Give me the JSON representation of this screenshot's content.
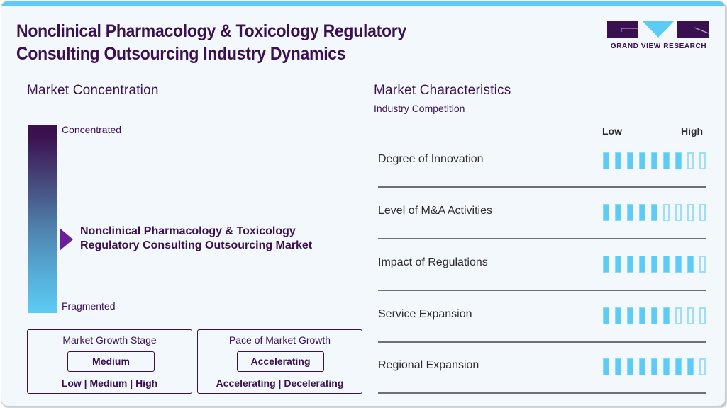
{
  "header": {
    "title_lines": [
      "Nonclinical Pharmacology & Toxicology Regulatory",
      "Consulting Outsourcing Industry Dynamics"
    ],
    "logo_text": "GRAND VIEW RESEARCH"
  },
  "colors": {
    "top_stripe": "#5ccbf5",
    "title_text": "#3b1050",
    "bar_filled": "#5ccbf5",
    "bar_empty_border": "#9fdef6",
    "pointer": "#6a1f9e",
    "gradient_top": "#3a0f4c",
    "gradient_bottom": "#5ccbf5"
  },
  "concentration": {
    "title": "Market Concentration",
    "top_label": "Concentrated",
    "bottom_label": "Fragmented",
    "market_name_lines": [
      "Nonclinical Pharmacology & Toxicology",
      "Regulatory Consulting Outsourcing Market"
    ]
  },
  "growth_stage": {
    "title": "Market Growth Stage",
    "value": "Medium",
    "options": "Low  |  Medium  |  High"
  },
  "growth_pace": {
    "title": "Pace of Market Growth",
    "value": "Accelerating",
    "options": "Accelerating  |  Decelerating"
  },
  "characteristics": {
    "title": "Market Characteristics",
    "subtitle": "Industry Competition",
    "scale_low": "Low",
    "scale_high": "High",
    "total_bars": 9,
    "rows": [
      {
        "label": "Degree of Innovation",
        "filled": 7
      },
      {
        "label": "Level of M&A Activities",
        "filled": 5
      },
      {
        "label": "Impact of Regulations",
        "filled": 8
      },
      {
        "label": "Service Expansion",
        "filled": 6
      },
      {
        "label": "Regional Expansion",
        "filled": 8
      }
    ]
  }
}
